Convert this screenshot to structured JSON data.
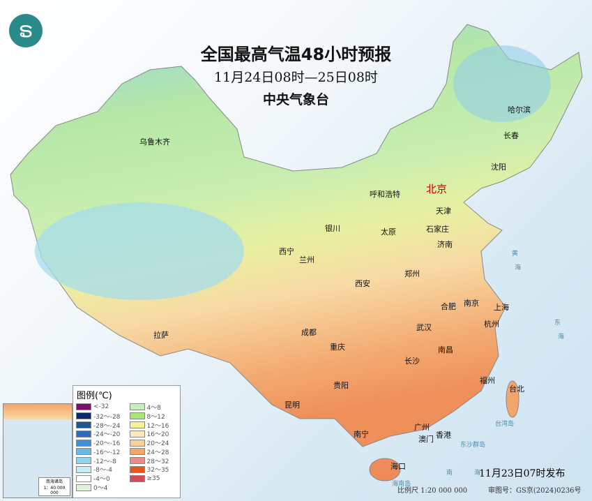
{
  "header": {
    "title": "全国最高气温48小时预报",
    "period": "11月24日08时—25日08时",
    "agency": "中央气象台",
    "logo_icon": "cma-logo-icon"
  },
  "cities": [
    {
      "name": "乌鲁木齐"
    },
    {
      "name": "哈尔滨"
    },
    {
      "name": "长春"
    },
    {
      "name": "沈阳"
    },
    {
      "name": "呼和浩特"
    },
    {
      "name": "北京",
      "capital": true
    },
    {
      "name": "天津"
    },
    {
      "name": "银川"
    },
    {
      "name": "太原"
    },
    {
      "name": "石家庄"
    },
    {
      "name": "西宁"
    },
    {
      "name": "兰州"
    },
    {
      "name": "济南"
    },
    {
      "name": "郑州"
    },
    {
      "name": "西安"
    },
    {
      "name": "合肥"
    },
    {
      "name": "南京"
    },
    {
      "name": "上海"
    },
    {
      "name": "成都"
    },
    {
      "name": "武汉"
    },
    {
      "name": "杭州"
    },
    {
      "name": "拉萨"
    },
    {
      "name": "重庆"
    },
    {
      "name": "南昌"
    },
    {
      "name": "长沙"
    },
    {
      "name": "福州"
    },
    {
      "name": "台北"
    },
    {
      "name": "贵阳"
    },
    {
      "name": "昆明"
    },
    {
      "name": "南宁"
    },
    {
      "name": "广州"
    },
    {
      "name": "澳门"
    },
    {
      "name": "香港"
    },
    {
      "name": "海口"
    }
  ],
  "seas": [
    "黄",
    "海",
    "东",
    "海",
    "台湾岛",
    "东沙群岛",
    "南",
    "海",
    "海南岛"
  ],
  "legend": {
    "title": "图例(℃)",
    "items": [
      {
        "label": "<-32",
        "color": "#7b0f6e"
      },
      {
        "label": "-32～-28",
        "color": "#0b2a6e"
      },
      {
        "label": "-28～-24",
        "color": "#1f5592"
      },
      {
        "label": "-24～-20",
        "color": "#2e6dbb"
      },
      {
        "label": "-20～-16",
        "color": "#3f90d8"
      },
      {
        "label": "-16～-12",
        "color": "#6bb7e6"
      },
      {
        "label": "-12～-8",
        "color": "#93d3ec"
      },
      {
        "label": "-8～-4",
        "color": "#c3ecf6"
      },
      {
        "label": "-4～0",
        "color": "#ffffff"
      },
      {
        "label": "0～4",
        "color": "#dff5d9"
      },
      {
        "label": "4～8",
        "color": "#c5f0b8"
      },
      {
        "label": "8～12",
        "color": "#a8e67b"
      },
      {
        "label": "12～16",
        "color": "#f5f29a"
      },
      {
        "label": "16～20",
        "color": "#fbe9c3"
      },
      {
        "label": "20～24",
        "color": "#f9cf9b"
      },
      {
        "label": "24～28",
        "color": "#f3a66b"
      },
      {
        "label": "28～32",
        "color": "#ef8a8a"
      },
      {
        "label": "32～35",
        "color": "#e8561f"
      },
      {
        "label": "≥35",
        "color": "#d64a55"
      }
    ]
  },
  "inset": {
    "title": "南海诸岛",
    "scale": "1：40 000 000"
  },
  "footer": {
    "published": "11月23日07时发布",
    "scale": "比例尺 1:20 000 000",
    "approval": "审图号：GS京(2024)0236号"
  }
}
